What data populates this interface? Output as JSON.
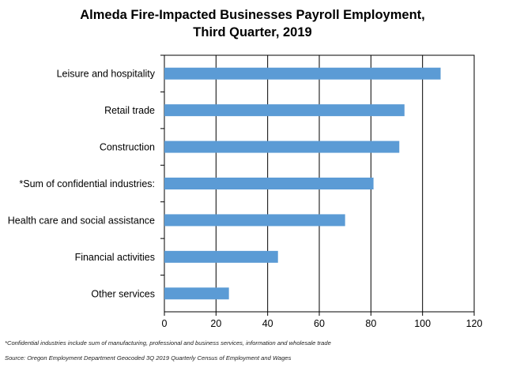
{
  "chart_data": {
    "type": "bar",
    "orientation": "horizontal",
    "title_lines": [
      "Almeda Fire-Impacted Businesses Payroll Employment,",
      "Third Quarter, 2019"
    ],
    "categories": [
      "Leisure and hospitality",
      "Retail trade",
      "Construction",
      "*Sum of confidential industries:",
      "Health care and social assistance",
      "Financial activities",
      "Other services"
    ],
    "values": [
      107,
      93,
      91,
      81,
      70,
      44,
      25
    ],
    "xlim": [
      0,
      120
    ],
    "xticks": [
      "0",
      "20",
      "40",
      "60",
      "80",
      "100",
      "120"
    ],
    "xlabel": "",
    "ylabel": "",
    "grid": "vertical",
    "bar_color": "#5b9bd5"
  },
  "footnotes": {
    "confidential": "*Confidential industries include sum of manufacturing, professional and business services, information and wholesale trade",
    "source": "Source: Oregon Employment Department Geocoded 3Q 2019 Quarterly Census of Employment and Wages"
  }
}
